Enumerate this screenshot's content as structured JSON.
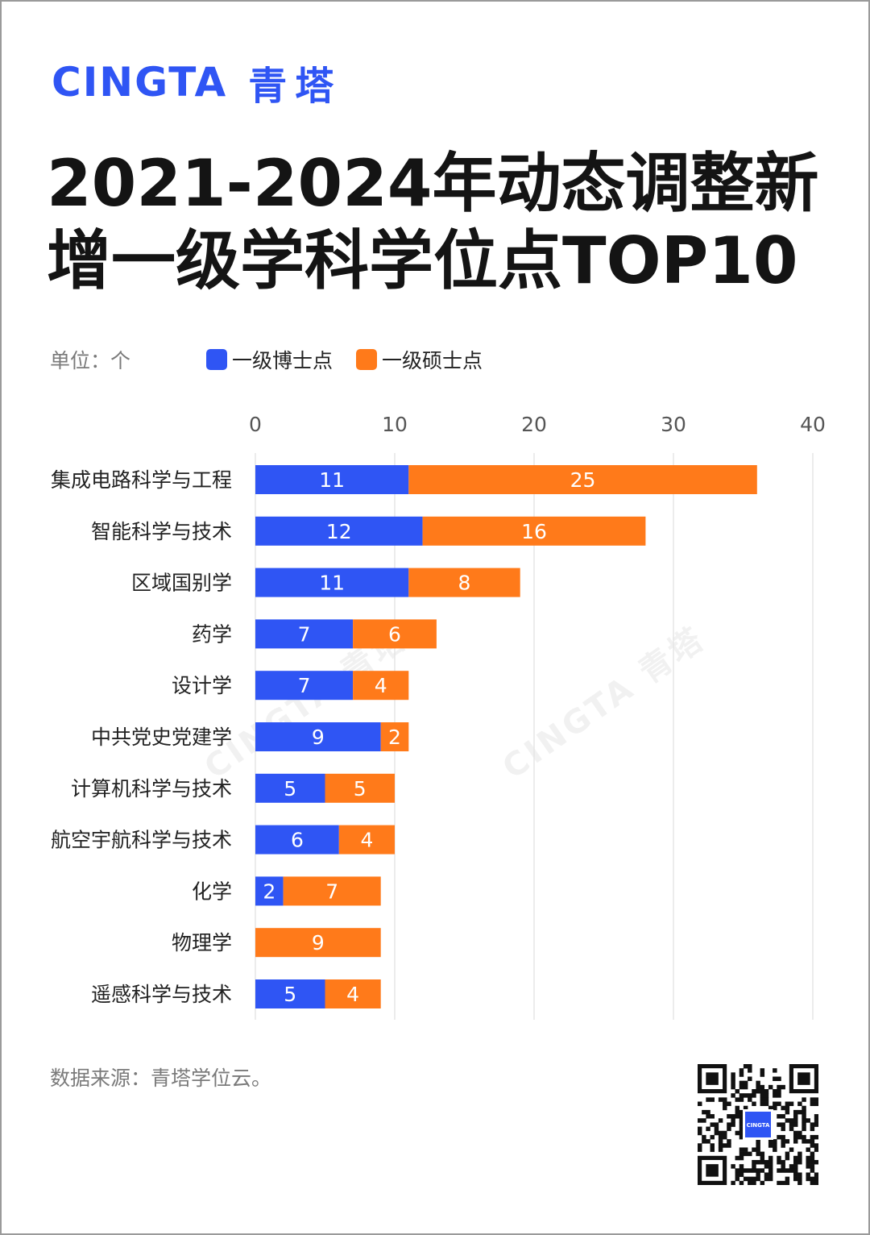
{
  "brand": {
    "latin": "CINGTA",
    "cjk": "青塔",
    "qr_badge": "CINGTA"
  },
  "title": {
    "line1": "2021-2024年动态调整新",
    "line2": "增一级学科学位点TOP10"
  },
  "unit_label": "单位：个",
  "source_label": "数据来源：青塔学位云。",
  "watermark": "CINGTA 青塔",
  "colors": {
    "doctoral": "#2f55f4",
    "master": "#ff7a1a",
    "grid": "#e6e6e6",
    "accent": "#2f55f4"
  },
  "chart_data": {
    "type": "bar",
    "orientation": "horizontal",
    "stacked": true,
    "categories": [
      "集成电路科学与工程",
      "智能科学与技术",
      "区域国别学",
      "药学",
      "设计学",
      "中共党史党建学",
      "计算机科学与技术",
      "航空宇航科学与技术",
      "化学",
      "物理学",
      "遥感科学与技术"
    ],
    "series": [
      {
        "name": "一级博士点",
        "color": "#2f55f4",
        "values": [
          11,
          12,
          11,
          7,
          7,
          9,
          5,
          6,
          2,
          0,
          5
        ]
      },
      {
        "name": "一级硕士点",
        "color": "#ff7a1a",
        "values": [
          25,
          16,
          8,
          6,
          4,
          2,
          5,
          4,
          7,
          9,
          4
        ]
      }
    ],
    "xlim": [
      0,
      40
    ],
    "xticks": [
      "0",
      "10",
      "20",
      "30",
      "40"
    ],
    "grid": true,
    "legend_position": "top"
  }
}
